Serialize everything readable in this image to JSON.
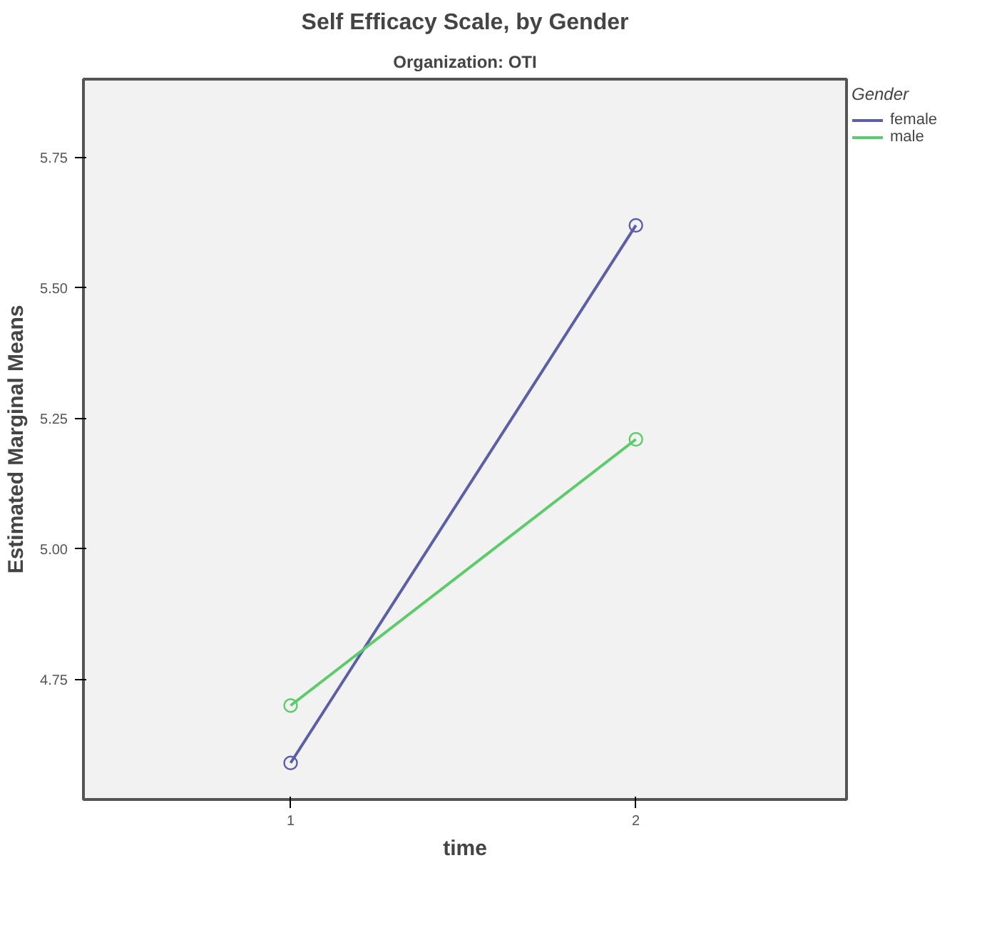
{
  "chart_data": {
    "type": "line",
    "title": "Self Efficacy Scale, by Gender",
    "subtitle": "Organization: OTI",
    "xlabel": "time",
    "ylabel": "Estimated Marginal Means",
    "legend_title": "Gender",
    "x": [
      1,
      2
    ],
    "xlim": [
      0.4,
      2.61
    ],
    "xticks": [
      1,
      2
    ],
    "ylim": [
      4.52,
      5.9
    ],
    "yticks": [
      4.75,
      {
        "value": 5.0,
        "label": "5.00"
      },
      5.25,
      {
        "value": 5.5,
        "label": "5.50"
      },
      5.75
    ],
    "grid": false,
    "legend": "right",
    "marker": "circle",
    "line_style": "solid",
    "series": [
      {
        "name": "female",
        "color": "#5b5fa8",
        "values": [
          4.59,
          5.62
        ]
      },
      {
        "name": "male",
        "color": "#5ccb6a",
        "values": [
          4.7,
          5.21
        ]
      }
    ]
  }
}
